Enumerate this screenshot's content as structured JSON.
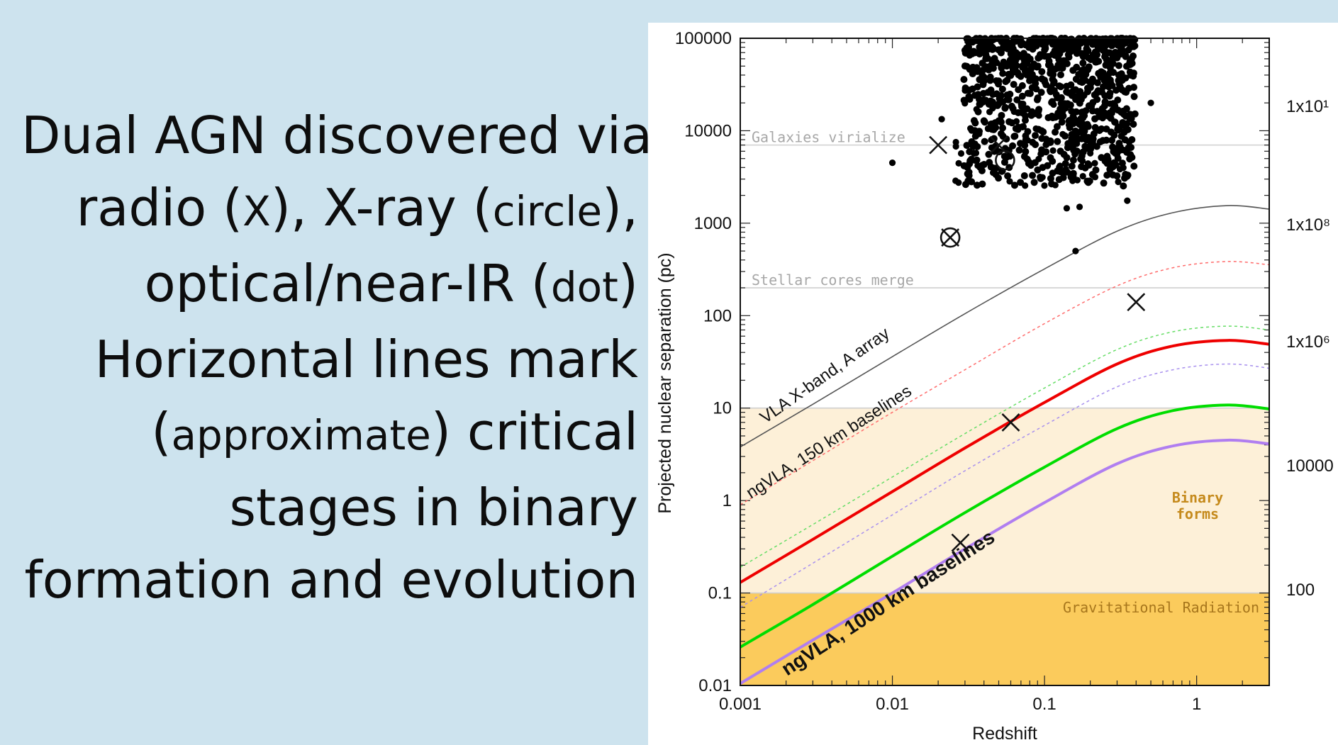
{
  "caption": {
    "l1": "Dual AGN discovered via",
    "l2a": "radio (",
    "l2b": "X",
    "l2c": "), X-ray (",
    "l2d": "circle",
    "l2e": "),",
    "l3a": "optical/near-IR (",
    "l3b": "dot",
    "l3c": ")",
    "l4": "Horizontal lines mark",
    "l5a": "(",
    "l5b": "approximate",
    "l5c": ") critical",
    "l6": "stages in binary",
    "l7": "formation and evolution"
  },
  "chart_data": {
    "type": "line",
    "xlabel": "Redshift",
    "ylabel": "Projected nuclear separation (pc)",
    "xscale": "log",
    "yscale": "log",
    "xlim": [
      0.001,
      3
    ],
    "ylim": [
      0.01,
      100000
    ],
    "x_ticks": [
      "0.001",
      "0.01",
      "0.1",
      "1"
    ],
    "y_ticks": [
      "0.01",
      "0.1",
      "1",
      "10",
      "100",
      "1000",
      "10000",
      "100000"
    ],
    "right_axis_ticks": [
      "1x10¹",
      "1x10⁸",
      "1x10⁶",
      "10000",
      "100"
    ],
    "regions": [
      {
        "label": "Binary forms",
        "ymin": 0.1,
        "ymax": 10,
        "color": "#fdf0d8"
      },
      {
        "label": "Gravitational Radiation",
        "ymin": 0.01,
        "ymax": 0.1,
        "color": "#fbcb5c"
      }
    ],
    "horizontal_lines": [
      {
        "label": "Galaxies virialize",
        "y": 7000
      },
      {
        "label": "Stellar cores merge",
        "y": 200
      },
      {
        "label": "",
        "y": 10
      },
      {
        "label": "",
        "y": 0.1
      }
    ],
    "series": [
      {
        "name": "VLA X-band, A array",
        "color": "#555555",
        "style": "solid",
        "width": 1.6,
        "x": [
          0.001,
          0.003,
          0.01,
          0.03,
          0.1,
          0.3,
          0.7,
          1.6,
          3
        ],
        "y": [
          3.8,
          11,
          36,
          105,
          320,
          820,
          1300,
          1550,
          1420
        ]
      },
      {
        "name": "",
        "color": "#ff6b6b",
        "style": "dotted",
        "width": 1.5,
        "x": [
          0.001,
          0.003,
          0.01,
          0.03,
          0.1,
          0.3,
          0.7,
          1.6,
          3
        ],
        "y": [
          0.9,
          2.7,
          9,
          26,
          82,
          210,
          330,
          385,
          355
        ]
      },
      {
        "name": "ngVLA, 150 km baselines",
        "color": "#ee0000",
        "style": "solid",
        "width": 4,
        "x": [
          0.001,
          0.003,
          0.01,
          0.03,
          0.1,
          0.3,
          0.7,
          1.6,
          3
        ],
        "y": [
          0.13,
          0.38,
          1.25,
          3.7,
          11.5,
          30,
          47,
          54,
          49
        ]
      },
      {
        "name": "",
        "color": "#66dd66",
        "style": "dotted",
        "width": 1.5,
        "x": [
          0.001,
          0.003,
          0.01,
          0.03,
          0.1,
          0.3,
          0.7,
          1.6,
          3
        ],
        "y": [
          0.19,
          0.55,
          1.8,
          5.3,
          16.5,
          43,
          67,
          77,
          70
        ]
      },
      {
        "name": "",
        "color": "#a890ee",
        "style": "dotted",
        "width": 1.5,
        "x": [
          0.001,
          0.003,
          0.01,
          0.03,
          0.1,
          0.3,
          0.7,
          1.6,
          3
        ],
        "y": [
          0.07,
          0.21,
          0.7,
          2.1,
          6.5,
          17,
          26,
          30,
          27
        ]
      },
      {
        "name": "",
        "color": "#00dd00",
        "style": "solid",
        "width": 4,
        "x": [
          0.001,
          0.003,
          0.01,
          0.03,
          0.1,
          0.3,
          0.7,
          1.6,
          3
        ],
        "y": [
          0.026,
          0.075,
          0.25,
          0.74,
          2.3,
          6,
          9.4,
          10.8,
          9.8
        ]
      },
      {
        "name": "ngVLA, 1000 km baselines",
        "color": "#b07ef0",
        "style": "solid",
        "width": 4,
        "x": [
          0.001,
          0.003,
          0.01,
          0.03,
          0.1,
          0.3,
          0.7,
          1.6,
          3
        ],
        "y": [
          0.0105,
          0.031,
          0.1,
          0.3,
          0.95,
          2.5,
          3.9,
          4.5,
          4.1
        ]
      }
    ],
    "radio_X": [
      {
        "x": 0.02,
        "y": 7000
      },
      {
        "x": 0.05,
        "y": 7000
      },
      {
        "x": 0.4,
        "y": 140
      },
      {
        "x": 0.06,
        "y": 7
      },
      {
        "x": 0.028,
        "y": 0.35
      },
      {
        "x": 0.024,
        "y": 700
      }
    ],
    "xray_circle": [
      {
        "x": 0.024,
        "y": 700
      },
      {
        "x": 0.055,
        "y": 4800
      }
    ],
    "optical_dot": [
      {
        "x": 0.01,
        "y": 4500
      },
      {
        "x": 0.16,
        "y": 500
      },
      {
        "x": 0.35,
        "y": 1750
      },
      {
        "x": 0.17,
        "y": 1500
      },
      {
        "x": 0.14,
        "y": 1450
      },
      {
        "x": 0.36,
        "y": 7500
      },
      {
        "x": 0.33,
        "y": 6200
      },
      {
        "x": 0.5,
        "y": 20000
      },
      {
        "x": 0.35,
        "y": 3200
      },
      {
        "x": 0.3,
        "y": 5500
      }
    ]
  }
}
